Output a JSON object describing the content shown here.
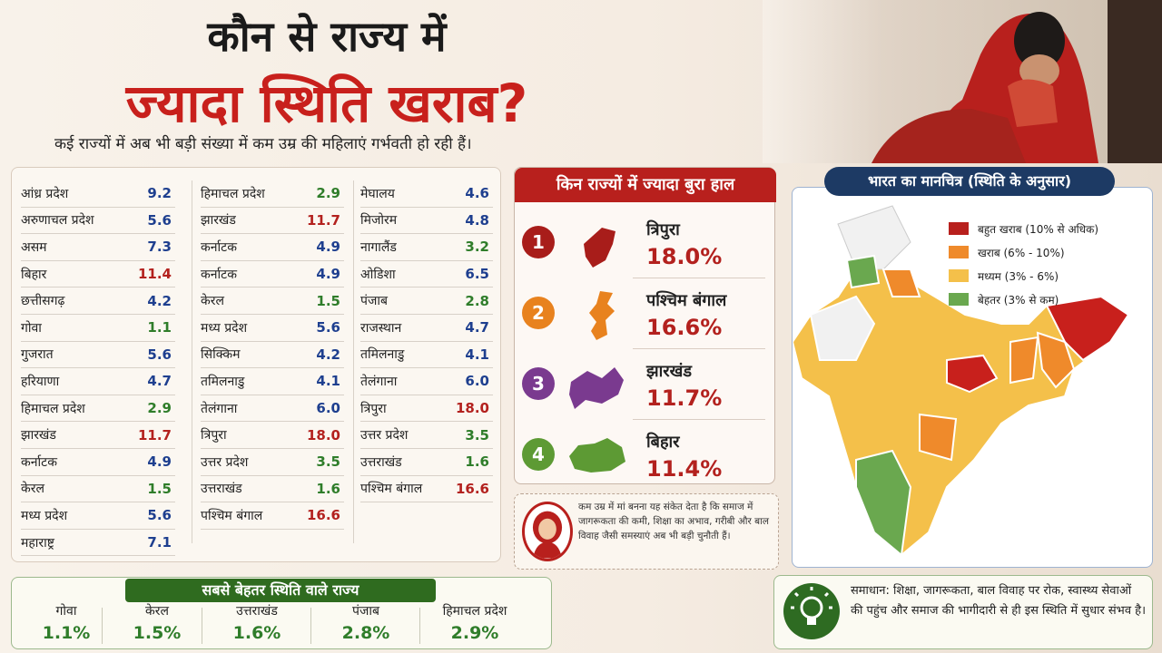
{
  "header": {
    "title_line1": "कौन से राज्य में",
    "title_line2": "ज्यादा स्थिति खराब?",
    "subtitle": "कई राज्यों में अब भी बड़ी संख्या में कम उम्र की महिलाएं गर्भवती हो रही हैं।"
  },
  "state_list": {
    "col1": [
      {
        "name": "आंध्र प्रदेश",
        "value": "9.2",
        "color": "blue"
      },
      {
        "name": "अरुणाचल प्रदेश",
        "value": "5.6",
        "color": "blue"
      },
      {
        "name": "असम",
        "value": "7.3",
        "color": "blue"
      },
      {
        "name": "बिहार",
        "value": "11.4",
        "color": "red"
      },
      {
        "name": "छत्तीसगढ़",
        "value": "4.2",
        "color": "blue"
      },
      {
        "name": "गोवा",
        "value": "1.1",
        "color": "green"
      },
      {
        "name": "गुजरात",
        "value": "5.6",
        "color": "blue"
      },
      {
        "name": "हरियाणा",
        "value": "4.7",
        "color": "blue"
      },
      {
        "name": "हिमाचल प्रदेश",
        "value": "2.9",
        "color": "green"
      },
      {
        "name": "झारखंड",
        "value": "11.7",
        "color": "red"
      },
      {
        "name": "कर्नाटक",
        "value": "4.9",
        "color": "blue"
      },
      {
        "name": "केरल",
        "value": "1.5",
        "color": "green"
      },
      {
        "name": "मध्य प्रदेश",
        "value": "5.6",
        "color": "blue"
      },
      {
        "name": "महाराष्ट्र",
        "value": "7.1",
        "color": "blue"
      }
    ],
    "col2": [
      {
        "name": "हिमाचल प्रदेश",
        "value": "2.9",
        "color": "green"
      },
      {
        "name": "झारखंड",
        "value": "11.7",
        "color": "red"
      },
      {
        "name": "कर्नाटक",
        "value": "4.9",
        "color": "blue"
      },
      {
        "name": "कर्नाटक",
        "value": "4.9",
        "color": "blue"
      },
      {
        "name": "केरल",
        "value": "1.5",
        "color": "green"
      },
      {
        "name": "मध्य प्रदेश",
        "value": "5.6",
        "color": "blue"
      },
      {
        "name": "सिक्किम",
        "value": "4.2",
        "color": "blue"
      },
      {
        "name": "तमिलनाडु",
        "value": "4.1",
        "color": "blue"
      },
      {
        "name": "तेलंगाना",
        "value": "6.0",
        "color": "blue"
      },
      {
        "name": "त्रिपुरा",
        "value": "18.0",
        "color": "red"
      },
      {
        "name": "उत्तर प्रदेश",
        "value": "3.5",
        "color": "green"
      },
      {
        "name": "उत्तराखंड",
        "value": "1.6",
        "color": "green"
      },
      {
        "name": "पश्चिम बंगाल",
        "value": "16.6",
        "color": "red"
      }
    ],
    "col3": [
      {
        "name": "मेघालय",
        "value": "4.6",
        "color": "blue"
      },
      {
        "name": "मिजोरम",
        "value": "4.8",
        "color": "blue"
      },
      {
        "name": "नागालैंड",
        "value": "3.2",
        "color": "green"
      },
      {
        "name": "ओडिशा",
        "value": "6.5",
        "color": "blue"
      },
      {
        "name": "पंजाब",
        "value": "2.8",
        "color": "green"
      },
      {
        "name": "राजस्थान",
        "value": "4.7",
        "color": "blue"
      },
      {
        "name": "तमिलनाडु",
        "value": "4.1",
        "color": "blue"
      },
      {
        "name": "तेलंगाना",
        "value": "6.0",
        "color": "blue"
      },
      {
        "name": "त्रिपुरा",
        "value": "18.0",
        "color": "red"
      },
      {
        "name": "उत्तर प्रदेश",
        "value": "3.5",
        "color": "green"
      },
      {
        "name": "उत्तराखंड",
        "value": "1.6",
        "color": "green"
      },
      {
        "name": "पश्चिम बंगाल",
        "value": "16.6",
        "color": "red"
      }
    ]
  },
  "worst": {
    "heading": "किन राज्यों में ज्यादा बुरा हाल",
    "items": [
      {
        "rank": "1",
        "name": "त्रिपुरा",
        "value": "18.0%",
        "color": "#a81d1a"
      },
      {
        "rank": "2",
        "name": "पश्चिम बंगाल",
        "value": "16.6%",
        "color": "#e8821e"
      },
      {
        "rank": "3",
        "name": "झारखंड",
        "value": "11.7%",
        "color": "#7a3a8f"
      },
      {
        "rank": "4",
        "name": "बिहार",
        "value": "11.4%",
        "color": "#5d9a34"
      }
    ]
  },
  "note": {
    "text": "कम उम्र में मां बनना यह संकेत देता है कि समाज में जागरूकता की कमी, शिक्षा का अभाव, गरीबी और बाल विवाह जैसी समस्याएं अब भी बड़ी चुनौती हैं।"
  },
  "map": {
    "heading": "भारत का मानचित्र (स्थिति के अनुसार)",
    "legend": [
      {
        "label": "बहुत खराब (10% से अधिक)",
        "color": "#b8201d"
      },
      {
        "label": "खराब (6% - 10%)",
        "color": "#ef8a2b"
      },
      {
        "label": "मध्यम (3% - 6%)",
        "color": "#f4c04a"
      },
      {
        "label": "बेहतर (3% से कम)",
        "color": "#6aa84f"
      }
    ]
  },
  "best": {
    "heading": "सबसे बेहतर स्थिति वाले राज्य",
    "items": [
      {
        "name": "गोवा",
        "value": "1.1%"
      },
      {
        "name": "केरल",
        "value": "1.5%"
      },
      {
        "name": "उत्तराखंड",
        "value": "1.6%"
      },
      {
        "name": "पंजाब",
        "value": "2.8%"
      },
      {
        "name": "हिमाचल प्रदेश",
        "value": "2.9%"
      }
    ]
  },
  "solution": {
    "text": "समाधान: शिक्षा, जागरूकता, बाल विवाह पर रोक, स्वास्थ्य सेवाओं की पहुंच और समाज की भागीदारी से ही इस स्थिति में सुधार संभव है।"
  }
}
